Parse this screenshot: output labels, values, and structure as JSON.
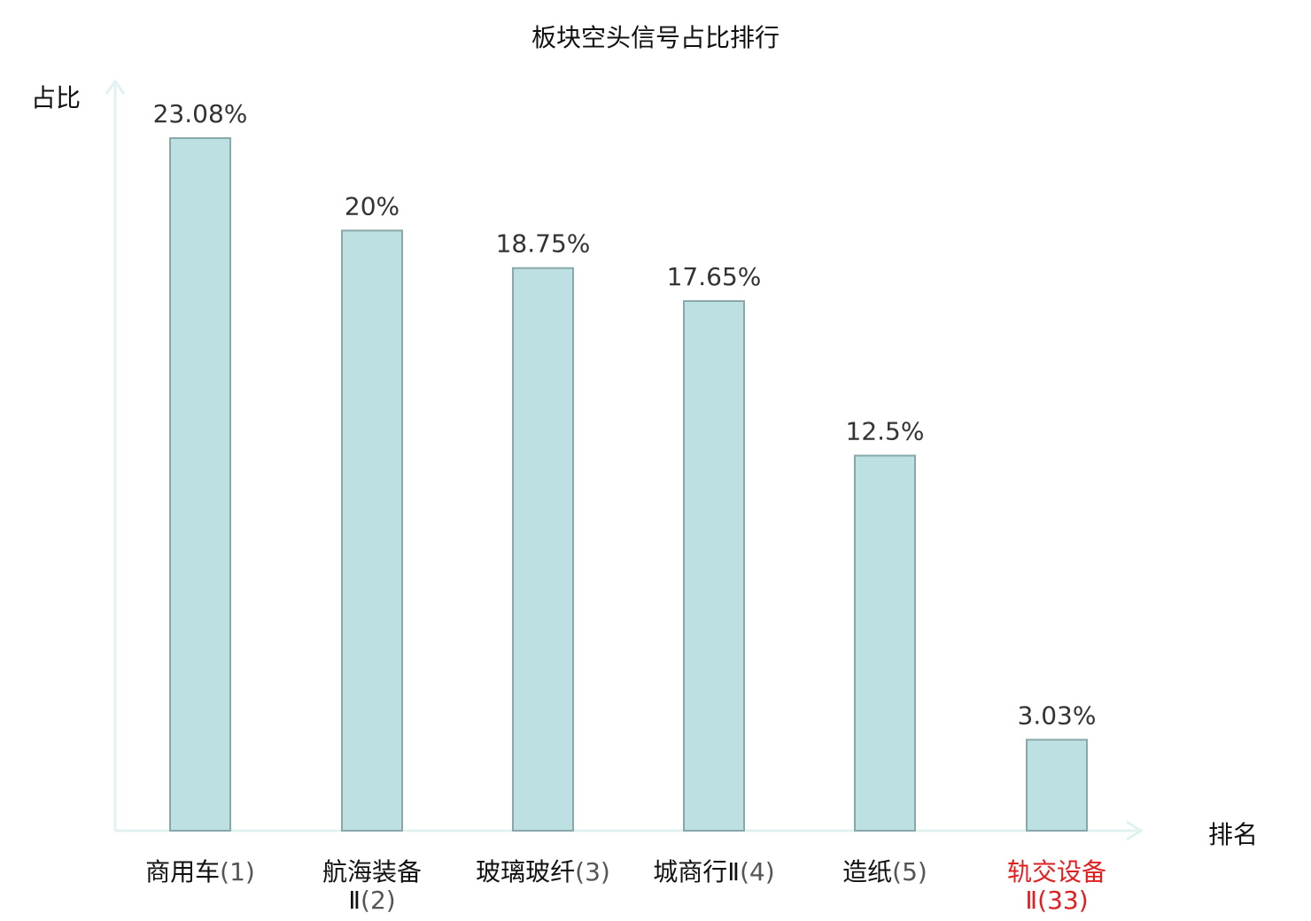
{
  "chart_data": {
    "type": "bar",
    "title": "板块空头信号占比排行",
    "ylabel": "占比",
    "xlabel": "排名",
    "ylim": [
      0,
      25
    ],
    "grid": false,
    "legend": "none",
    "categories": [
      {
        "name": "商用车",
        "rank": "(1)"
      },
      {
        "name": "航海装备",
        "name_line2": "Ⅱ",
        "rank": "(2)"
      },
      {
        "name": "玻璃玻纤",
        "rank": "(3)"
      },
      {
        "name": "城商行Ⅱ",
        "rank": "(4)"
      },
      {
        "name": "造纸",
        "rank": "(5)"
      },
      {
        "name": "轨交设备",
        "name_line2": "Ⅱ",
        "rank": "(33)",
        "highlight": true
      }
    ],
    "values": [
      23.08,
      20,
      18.75,
      17.65,
      12.5,
      3.03
    ],
    "value_labels": [
      "23.08%",
      "20%",
      "18.75%",
      "17.65%",
      "12.5%",
      "3.03%"
    ],
    "colors": {
      "bar_fill": "#bde0e2",
      "bar_stroke": "#8aa8aa",
      "axis": "#e0f2f0",
      "highlight_text": "#e02020",
      "text": "#111111",
      "rank_text": "#555555"
    }
  }
}
